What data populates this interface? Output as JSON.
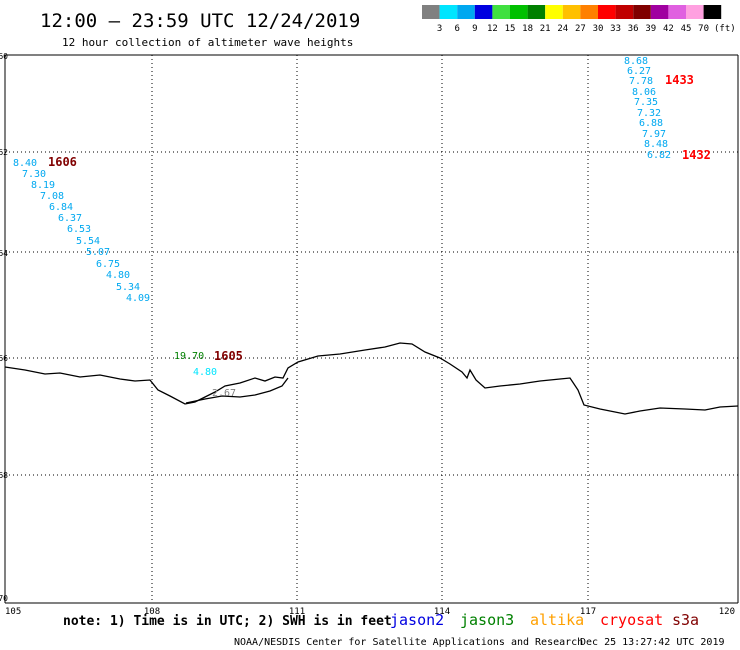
{
  "header": {
    "title": "12:00 – 23:59 UTC 12/24/2019",
    "subtitle": "12 hour collection of altimeter wave heights"
  },
  "legend": {
    "swatches": [
      {
        "color": "#808080",
        "label": "3"
      },
      {
        "color": "#00e5ff",
        "label": "6"
      },
      {
        "color": "#00a8f0",
        "label": "9"
      },
      {
        "color": "#0000e0",
        "label": "12"
      },
      {
        "color": "#40e040",
        "label": "15"
      },
      {
        "color": "#00c000",
        "label": "18"
      },
      {
        "color": "#008000",
        "label": "21"
      },
      {
        "color": "#ffff00",
        "label": "24"
      },
      {
        "color": "#ffc000",
        "label": "27"
      },
      {
        "color": "#ff8000",
        "label": "30"
      },
      {
        "color": "#ff0000",
        "label": "33"
      },
      {
        "color": "#c00000",
        "label": "36"
      },
      {
        "color": "#800000",
        "label": "39"
      },
      {
        "color": "#a000a0",
        "label": "42"
      },
      {
        "color": "#e060e0",
        "label": "45"
      },
      {
        "color": "#ffa0e0",
        "label": "70"
      },
      {
        "color": "#000000",
        "label": ""
      }
    ],
    "unit": "(ft)"
  },
  "axes": {
    "lon_ticks": [
      "105",
      "108",
      "111",
      "114",
      "117",
      "120"
    ],
    "lat_ticks": [
      "-60",
      "-62",
      "-64",
      "-66",
      "-68",
      "-70"
    ]
  },
  "tracks": [
    {
      "pass_label": "1606",
      "label_color": "#800000",
      "value_color": "#00a8f0",
      "values": [
        "8.40",
        "7.30",
        "8.19",
        "7.08",
        "6.84",
        "6.37",
        "6.53",
        "5.54",
        "5.07",
        "6.75",
        "4.80",
        "5.34",
        "4.09"
      ]
    },
    {
      "pass_label": "1605",
      "label_color": "#800000",
      "value_color": "#00e5ff",
      "values": [
        "19.70",
        "4.80",
        "2.67"
      ]
    },
    {
      "pass_label": "1433",
      "label_color": "#ff0000",
      "value_color": "#00a8f0",
      "values": [
        "8.68",
        "6.27",
        "7.78",
        "8.06",
        "7.35",
        "7.32",
        "6.88",
        "7.97",
        "8.48",
        "6.82"
      ]
    },
    {
      "pass_label": "1432",
      "label_color": "#ff0000",
      "value_color": "#00a8f0",
      "values": []
    }
  ],
  "footer": {
    "note": "note:  1) Time is in UTC;  2) SWH is in feet",
    "satellites": [
      {
        "name": "jason2",
        "color": "#0000e0"
      },
      {
        "name": "jason3",
        "color": "#008000"
      },
      {
        "name": "altika",
        "color": "#ffa000"
      },
      {
        "name": "cryosat",
        "color": "#ff0000"
      },
      {
        "name": "s3a",
        "color": "#800000"
      }
    ],
    "credit": "NOAA/NESDIS Center for Satellite Applications and Research",
    "timestamp": "Dec 25 13:27:42 UTC 2019"
  }
}
